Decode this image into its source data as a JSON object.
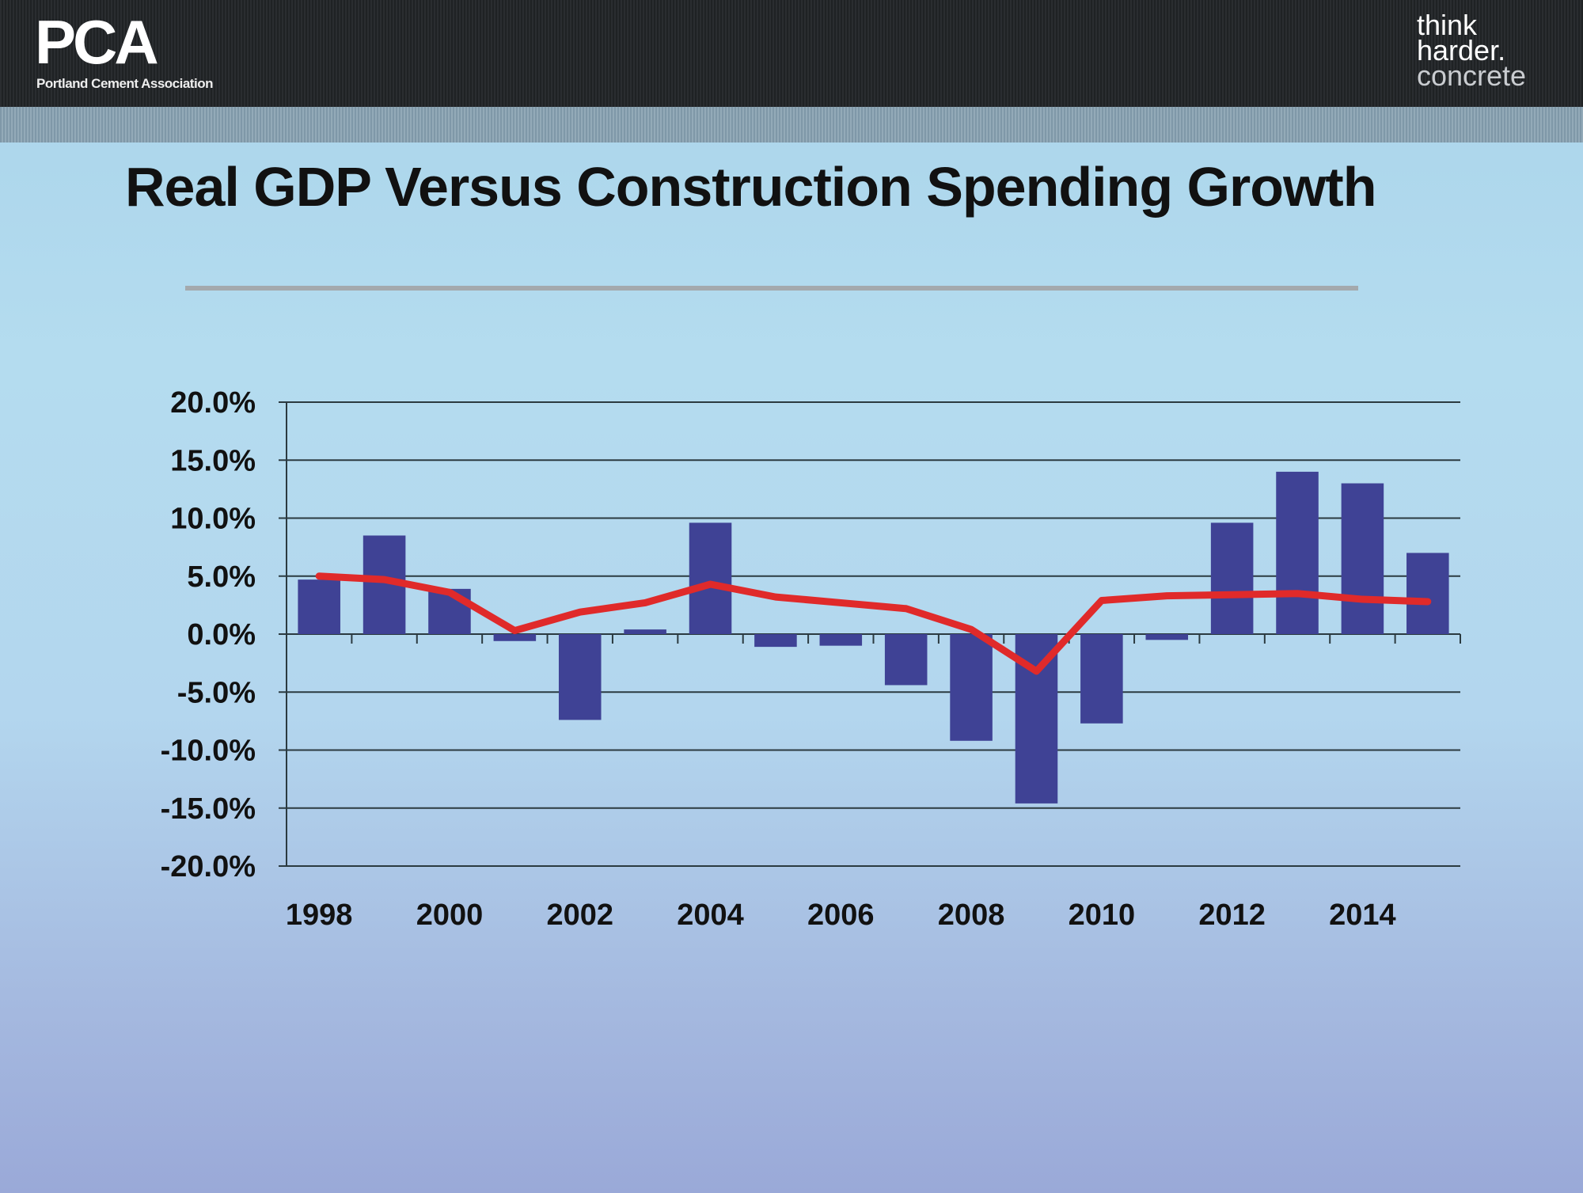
{
  "header": {
    "logo": "PCA",
    "logo_subtitle": "Portland Cement Association",
    "tagline": [
      "think",
      "harder.",
      "concrete"
    ]
  },
  "slide": {
    "title": "Real GDP Versus Construction Spending Growth"
  },
  "chart_data": {
    "type": "bar",
    "title": "",
    "categories": [
      "1998",
      "1999",
      "2000",
      "2001",
      "2002",
      "2003",
      "2004",
      "2005",
      "2006",
      "2007",
      "2008",
      "2009",
      "2010",
      "2011",
      "2012",
      "2013",
      "2014",
      "2015"
    ],
    "x_tick_labels": [
      "1998",
      "2000",
      "2002",
      "2004",
      "2006",
      "2008",
      "2010",
      "2012",
      "2014"
    ],
    "y_tick_labels": [
      "20.0%",
      "15.0%",
      "10.0%",
      "5.0%",
      "0.0%",
      "-5.0%",
      "-10.0%",
      "-15.0%",
      "-20.0%"
    ],
    "ylim": [
      -20,
      20
    ],
    "grid": true,
    "legend": "none",
    "series": [
      {
        "type": "bar",
        "color": "#3f4295",
        "values": [
          4.7,
          8.5,
          3.9,
          -0.6,
          -7.4,
          0.4,
          9.6,
          -1.1,
          -1.0,
          -4.4,
          -9.2,
          -14.6,
          -7.7,
          -0.5,
          9.6,
          14.0,
          13.0,
          7.0
        ]
      },
      {
        "type": "line",
        "color": "#e02a2a",
        "values": [
          5.0,
          4.7,
          3.6,
          0.3,
          1.9,
          2.7,
          4.3,
          3.2,
          2.7,
          2.2,
          0.4,
          -3.2,
          2.9,
          3.3,
          3.4,
          3.5,
          3.0,
          2.8
        ]
      }
    ]
  }
}
